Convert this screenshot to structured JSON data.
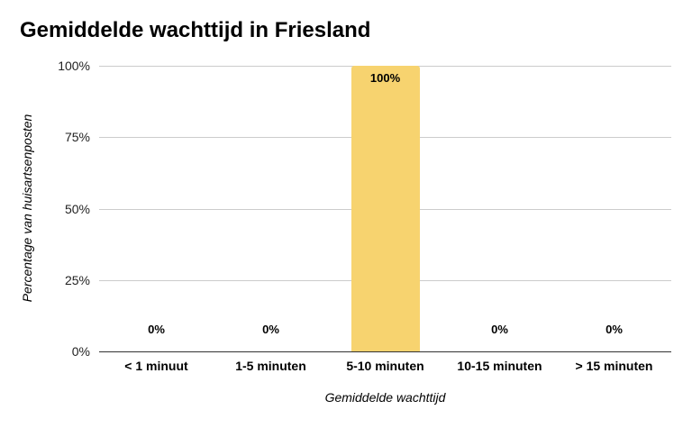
{
  "chart_data": {
    "type": "bar",
    "title": "Gemiddelde wachttijd in Friesland",
    "xlabel": "Gemiddelde wachttijd",
    "ylabel": "Percentage van huisartsenposten",
    "categories": [
      "< 1 minuut",
      "1-5 minuten",
      "5-10 minuten",
      "10-15 minuten",
      "> 15 minuten"
    ],
    "values": [
      0,
      0,
      100,
      0,
      0
    ],
    "data_labels": [
      "0%",
      "0%",
      "100%",
      "0%",
      "0%"
    ],
    "yticks": [
      "0%",
      "25%",
      "50%",
      "75%",
      "100%"
    ],
    "ylim": [
      0,
      100
    ],
    "grid": true,
    "legend": "none",
    "bar_color": "#f7d36f"
  }
}
